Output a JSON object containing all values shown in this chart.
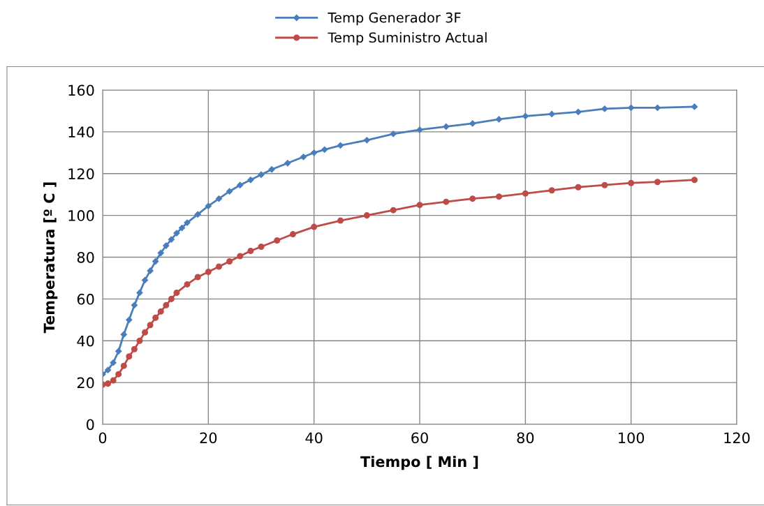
{
  "chart_data": {
    "type": "line",
    "xlabel": "Tiempo [ Min ]",
    "ylabel": "Temperatura [º C ]",
    "xlim": [
      0,
      120
    ],
    "xticks": [
      0,
      20,
      40,
      60,
      80,
      100,
      120
    ],
    "ylim": [
      0,
      160
    ],
    "yticks": [
      0,
      20,
      40,
      60,
      80,
      100,
      120,
      140,
      160
    ],
    "grid": true,
    "legend": "top",
    "line_style": "solid",
    "series": [
      {
        "name": "Temp Generador 3F",
        "color": "#4a7ebb",
        "marker": "diamond",
        "x": [
          0,
          1,
          2,
          3,
          4,
          5,
          6,
          7,
          8,
          9,
          10,
          11,
          12,
          13,
          14,
          15,
          16,
          18,
          20,
          22,
          24,
          26,
          28,
          30,
          32,
          35,
          38,
          40,
          42,
          45,
          50,
          55,
          60,
          65,
          70,
          75,
          80,
          85,
          90,
          95,
          100,
          105,
          112
        ],
        "values": [
          24,
          26,
          29.5,
          35,
          43,
          50,
          57,
          63,
          69,
          73.5,
          78,
          82,
          85.5,
          88.5,
          91.5,
          94,
          96.5,
          100.5,
          104.5,
          108,
          111.5,
          114.5,
          117,
          119.5,
          122,
          125,
          128,
          130,
          131.5,
          133.5,
          136,
          139,
          141,
          142.5,
          144,
          146,
          147.5,
          148.5,
          149.5,
          151,
          151.5,
          151.5,
          152
        ]
      },
      {
        "name": "Temp Suministro Actual",
        "color": "#be4b48",
        "marker": "circle",
        "x": [
          0,
          1,
          2,
          3,
          4,
          5,
          6,
          7,
          8,
          9,
          10,
          11,
          12,
          13,
          14,
          16,
          18,
          20,
          22,
          24,
          26,
          28,
          30,
          33,
          36,
          40,
          45,
          50,
          55,
          60,
          65,
          70,
          75,
          80,
          85,
          90,
          95,
          100,
          105,
          112
        ],
        "values": [
          19,
          19.5,
          21,
          24,
          28,
          32.5,
          36,
          40,
          44,
          47.5,
          51,
          54,
          57,
          60,
          63,
          67,
          70.5,
          73,
          75.5,
          78,
          80.5,
          83,
          85,
          88,
          91,
          94.5,
          97.5,
          100,
          102.5,
          105,
          106.5,
          108,
          109,
          110.5,
          112,
          113.5,
          114.5,
          115.5,
          116,
          117
        ]
      }
    ]
  }
}
